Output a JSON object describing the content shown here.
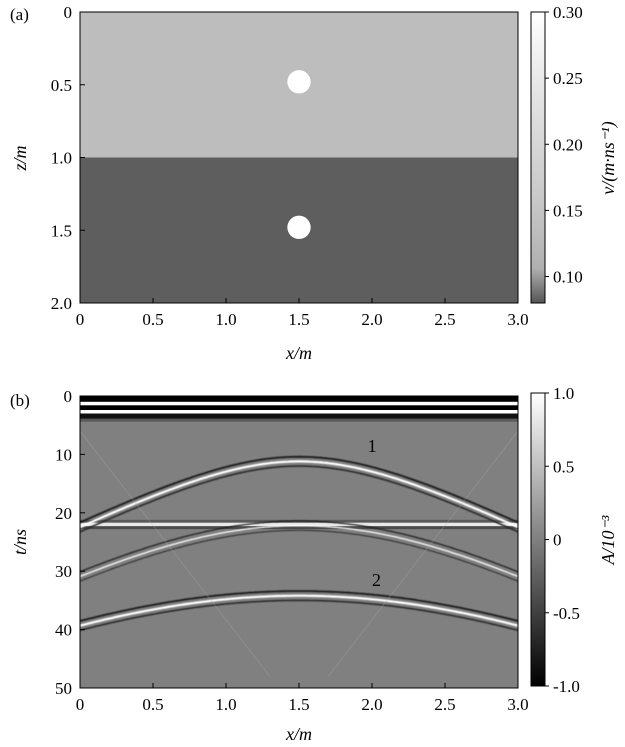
{
  "chart_data": [
    {
      "type": "heatmap",
      "panel_label": "(a)",
      "xlabel": "x/m",
      "ylabel": "z/m",
      "xlim": [
        0,
        3.0
      ],
      "ylim": [
        2.0,
        0
      ],
      "x_ticks": [
        "0",
        "0.5",
        "1.0",
        "1.5",
        "2.0",
        "2.5",
        "3.0"
      ],
      "y_ticks": [
        "0",
        "0.5",
        "1.0",
        "1.5",
        "2.0"
      ],
      "layers": [
        {
          "z_from": 0,
          "z_to": 1.0,
          "value": 0.17
        },
        {
          "z_from": 1.0,
          "z_to": 2.0,
          "value": 0.11
        }
      ],
      "inclusions": [
        {
          "x": 1.5,
          "z": 0.48,
          "radius": 0.05,
          "value": 0.3
        },
        {
          "x": 1.5,
          "z": 1.48,
          "radius": 0.05,
          "value": 0.3
        }
      ],
      "colorbar": {
        "label": "v/(m·ns⁻¹)",
        "range": [
          0.08,
          0.3
        ],
        "ticks": [
          "0.30",
          "0.25",
          "0.20",
          "0.15",
          "0.10"
        ]
      },
      "colors": {
        "layer1": "#bdbdbd",
        "layer2": "#5e5e5e",
        "inclusion": "#ffffff"
      }
    },
    {
      "type": "heatmap",
      "panel_label": "(b)",
      "xlabel": "x/m",
      "ylabel": "t/ns",
      "xlim": [
        0,
        3.0
      ],
      "ylim": [
        50,
        0
      ],
      "x_ticks": [
        "0",
        "0.5",
        "1.0",
        "1.5",
        "2.0",
        "2.5",
        "3.0"
      ],
      "y_ticks": [
        "0",
        "10",
        "20",
        "30",
        "40",
        "50"
      ],
      "flat_reflections_t": [
        2.5,
        22
      ],
      "hyperbolas": [
        {
          "label": "1",
          "apex_x": 1.5,
          "apex_t": 11
        },
        {
          "label": "",
          "apex_x": 1.5,
          "apex_t": 22
        },
        {
          "label": "2",
          "apex_x": 1.5,
          "apex_t": 34
        }
      ],
      "colorbar": {
        "label": "A/10⁻³",
        "range": [
          -1.0,
          1.0
        ],
        "ticks": [
          "1.0",
          "0.5",
          "0",
          "-0.5",
          "-1.0"
        ]
      },
      "colors": {
        "background": "#808080"
      }
    }
  ]
}
